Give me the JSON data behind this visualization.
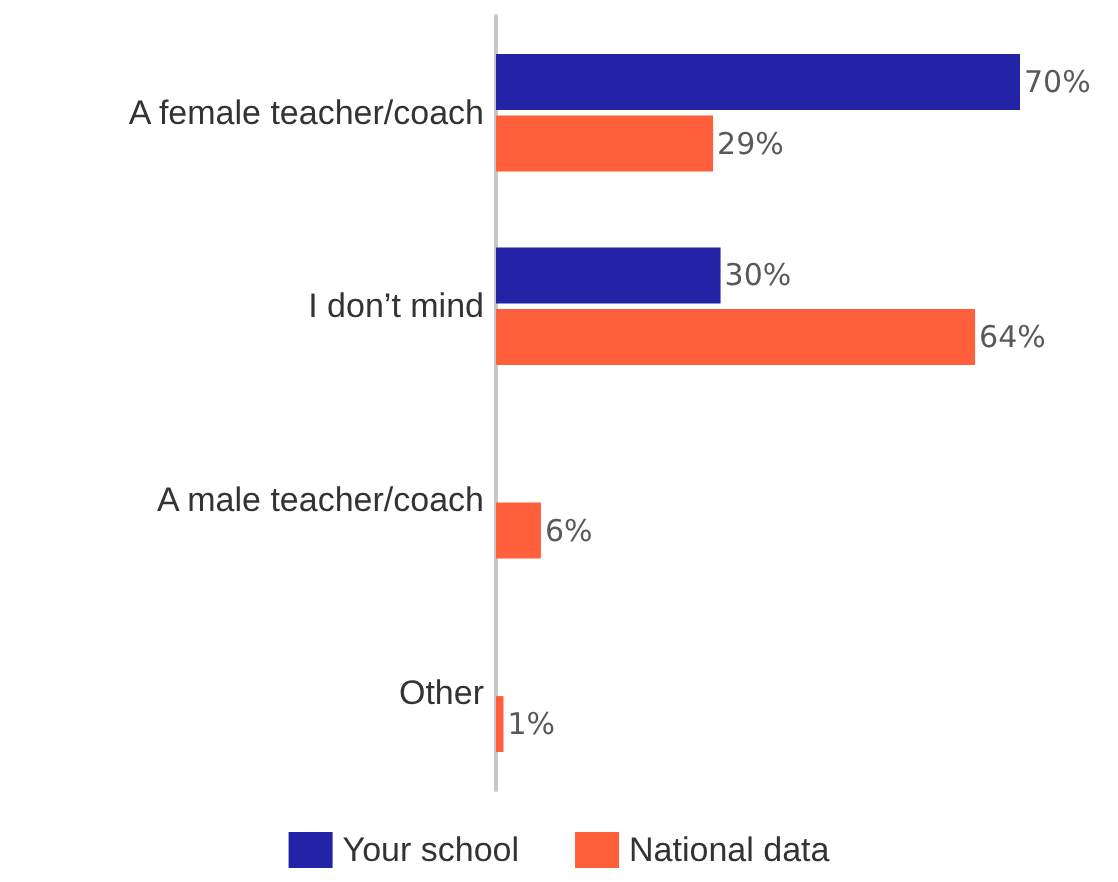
{
  "chart_data": {
    "type": "bar",
    "orientation": "horizontal",
    "categories": [
      "A female teacher/coach",
      "I don’t mind",
      "A male teacher/coach",
      "Other"
    ],
    "series": [
      {
        "name": "Your school",
        "color": "#2323a8",
        "values": [
          70,
          30,
          null,
          null
        ],
        "value_labels": [
          "70%",
          "30%",
          null,
          null
        ]
      },
      {
        "name": "National data",
        "color": "#ff5f3a",
        "values": [
          29,
          64,
          6,
          1
        ],
        "value_labels": [
          "29%",
          "64%",
          "6%",
          "1%"
        ]
      }
    ],
    "legend": "bottom"
  }
}
